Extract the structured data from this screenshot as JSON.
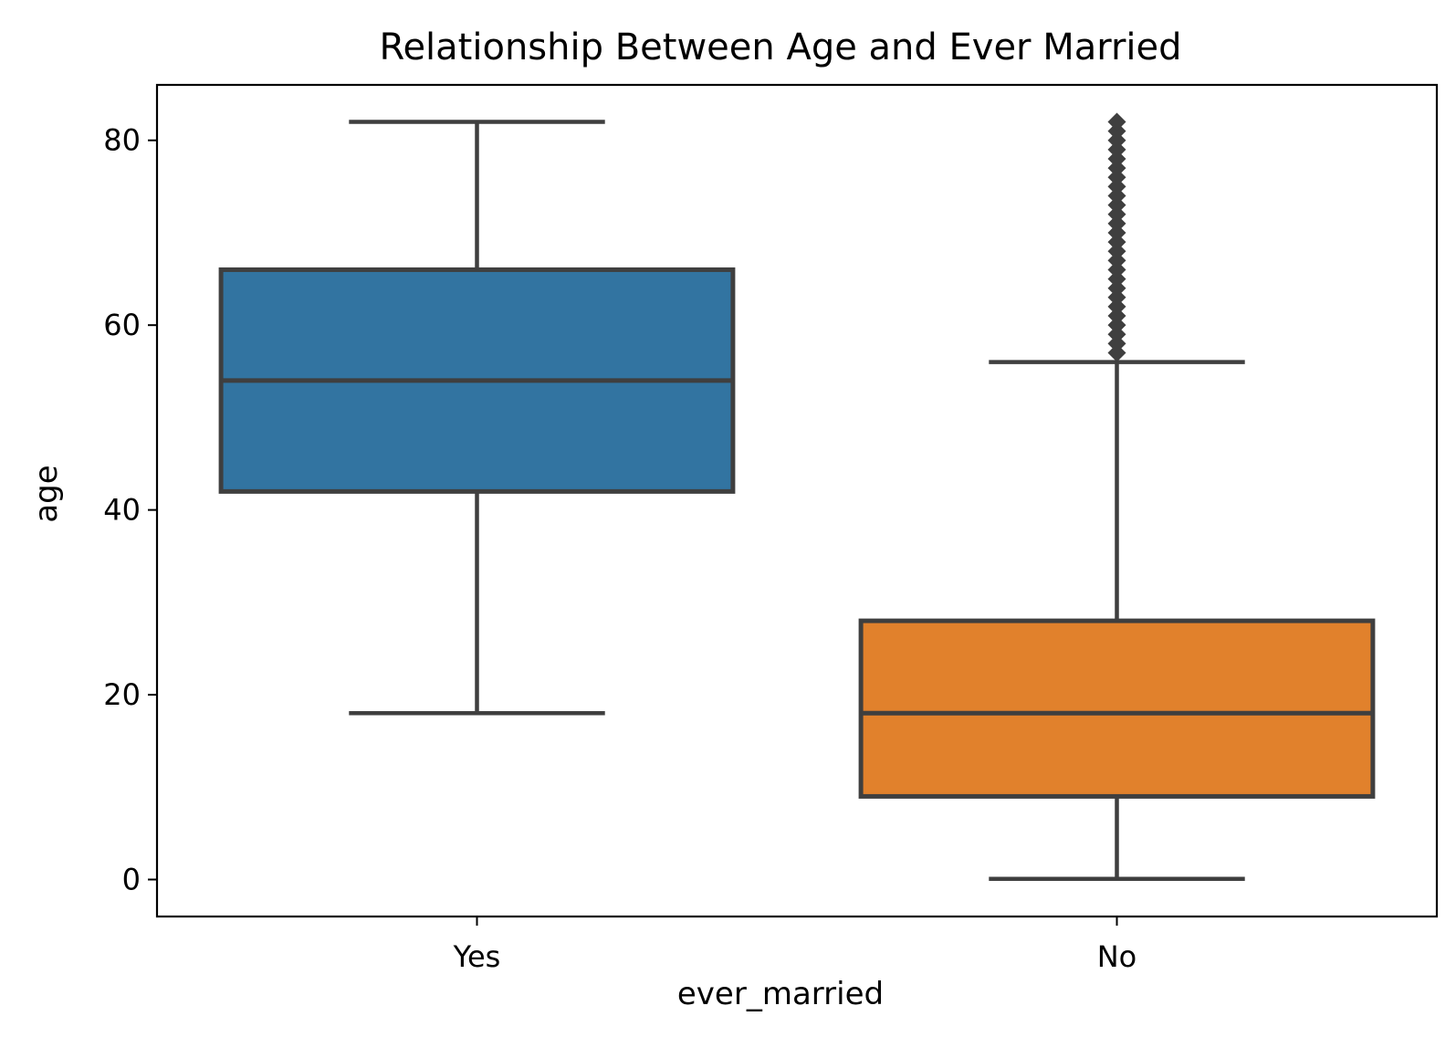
{
  "chart_data": {
    "type": "box",
    "title": "Relationship Between Age and Ever Married",
    "xlabel": "ever_married",
    "ylabel": "age",
    "categories": [
      "Yes",
      "No"
    ],
    "ylim": [
      -4,
      86
    ],
    "yticks": [
      0,
      20,
      40,
      60,
      80
    ],
    "grid": false,
    "boxes": [
      {
        "category": "Yes",
        "color": "#3274a1",
        "whisker_low": 18,
        "q1": 42,
        "median": 54,
        "q3": 66,
        "whisker_high": 82,
        "outliers": []
      },
      {
        "category": "No",
        "color": "#e1812c",
        "whisker_low": 0.08,
        "q1": 9,
        "median": 18,
        "q3": 28,
        "whisker_high": 56,
        "outliers": [
          57,
          58,
          59,
          60,
          61,
          62,
          63,
          64,
          65,
          66,
          67,
          68,
          69,
          70,
          71,
          72,
          73,
          74,
          75,
          76,
          77,
          78,
          79,
          80,
          81,
          82
        ]
      }
    ]
  }
}
